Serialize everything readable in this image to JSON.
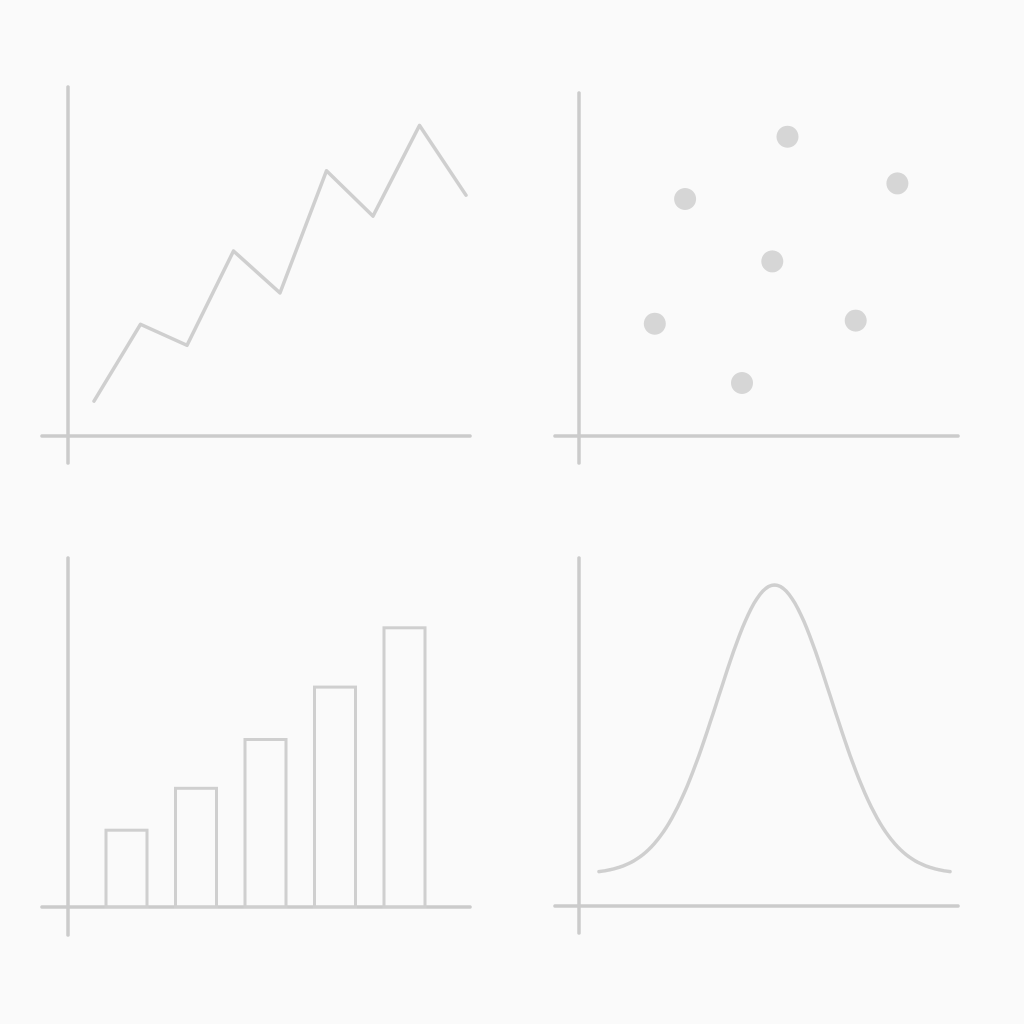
{
  "chart_data": [
    {
      "type": "line",
      "x": [
        1,
        2,
        3,
        4,
        5,
        6,
        7,
        8,
        9
      ],
      "values": [
        1.0,
        3.2,
        2.6,
        5.3,
        4.1,
        7.6,
        6.3,
        8.9,
        6.9
      ],
      "ylim": [
        0,
        10
      ],
      "xlim": [
        0,
        10
      ],
      "grid": false
    },
    {
      "type": "scatter",
      "points": [
        {
          "x": 2.0,
          "y": 3.6
        },
        {
          "x": 2.8,
          "y": 7.6
        },
        {
          "x": 4.3,
          "y": 1.7
        },
        {
          "x": 5.1,
          "y": 5.6
        },
        {
          "x": 5.5,
          "y": 9.6
        },
        {
          "x": 7.3,
          "y": 3.7
        },
        {
          "x": 8.4,
          "y": 8.1
        }
      ],
      "xlim": [
        0,
        10
      ],
      "ylim": [
        0,
        11
      ],
      "grid": false
    },
    {
      "type": "bar",
      "values": [
        2.2,
        3.4,
        4.8,
        6.3,
        8.0
      ],
      "ylim": [
        0,
        10
      ],
      "grid": false
    },
    {
      "type": "area",
      "shape": "normal",
      "mean": 0,
      "sd": 1,
      "xlim": [
        -3.1,
        3.1
      ],
      "ylim": [
        0,
        1
      ],
      "peak": 0.9,
      "grid": false
    }
  ]
}
